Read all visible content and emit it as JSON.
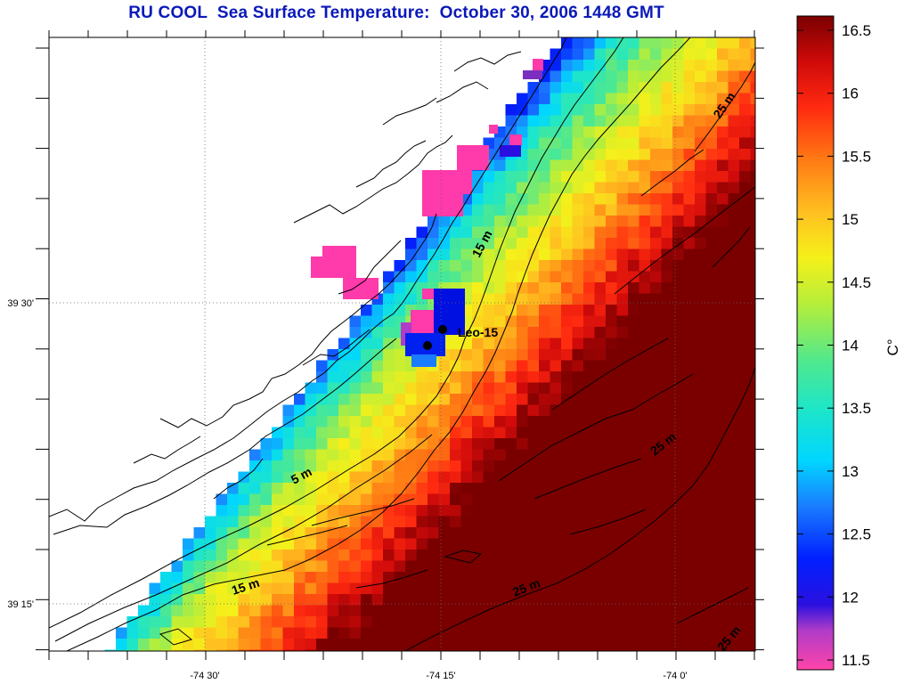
{
  "title": "RU COOL  Sea Surface Temperature:  October 30, 2006 1448 GMT",
  "map": {
    "lon_ticks": [
      "-74 30'",
      "-74 15'",
      "-74 0'"
    ],
    "lat_ticks": [
      "39 30'",
      "39 15'"
    ],
    "grid": true,
    "contours": [
      {
        "label": "25 m"
      },
      {
        "label": "15 m"
      },
      {
        "label": "25 m"
      },
      {
        "label": "5 m"
      },
      {
        "label": "15 m"
      },
      {
        "label": "25 m"
      },
      {
        "label": "25 m"
      }
    ],
    "stations": [
      {
        "name": "Leo-15"
      }
    ]
  },
  "colorbar": {
    "unit": "C°",
    "min": 11.5,
    "max": 16.5,
    "ticks": [
      "16.5",
      "16",
      "15.5",
      "15",
      "14.5",
      "14",
      "13.5",
      "13",
      "12.5",
      "12",
      "11.5"
    ],
    "colors": [
      "#ff44aa",
      "#7a3fb0",
      "#0000ff",
      "#1e88ff",
      "#00e5ee",
      "#3fe3a6",
      "#8aea4c",
      "#f3ef1e",
      "#ffa520",
      "#ff4a14",
      "#e80f10",
      "#800000"
    ]
  }
}
